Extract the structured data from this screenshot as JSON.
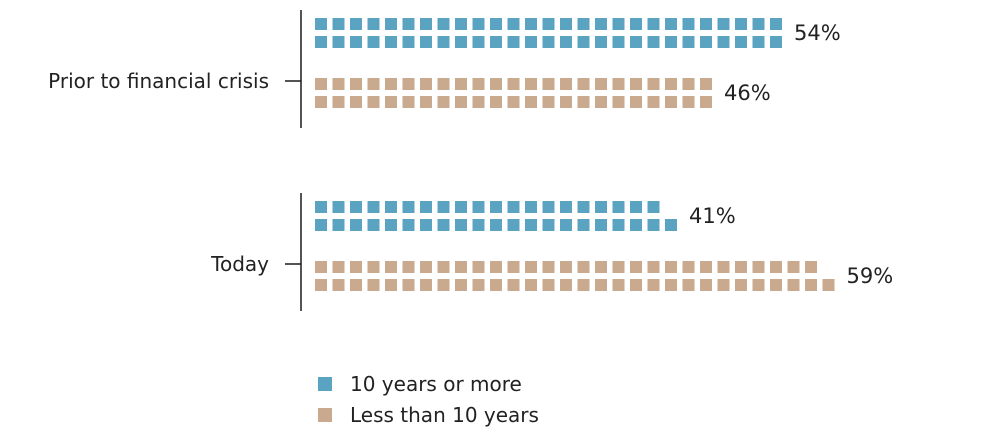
{
  "chart_data": {
    "type": "bar",
    "style": "waffle",
    "categories": [
      "Prior to financial crisis",
      "Today"
    ],
    "series": [
      {
        "name": "10 years or more",
        "color": "#5ba4c1",
        "values": [
          54,
          41
        ]
      },
      {
        "name": "Less than 10 years",
        "color": "#c9aa8e",
        "values": [
          46,
          59
        ]
      }
    ],
    "value_labels": [
      [
        "54%",
        "46%"
      ],
      [
        "41%",
        "59%"
      ]
    ],
    "unit": "%",
    "legend_position": "bottom",
    "grid": false
  }
}
